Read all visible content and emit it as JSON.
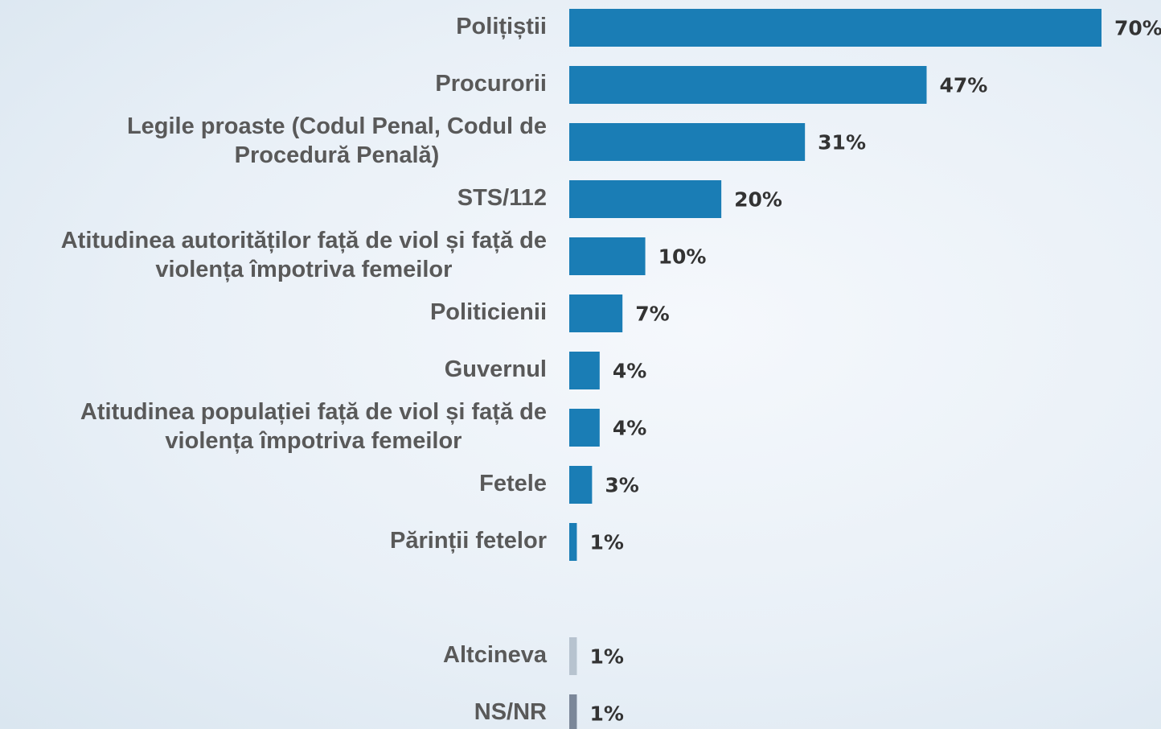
{
  "chart_data": {
    "type": "barh",
    "categories": [
      "Polițiștii",
      "Procurorii",
      [
        "Legile proaste (Codul Penal, Codul de",
        "Procedură Penală)"
      ],
      "STS/112",
      [
        "Atitudinea autorităților față de viol și față de",
        "violența împotriva femeilor"
      ],
      "Politicienii",
      "Guvernul",
      [
        "Atitudinea populației față de viol și față de",
        "violența împotriva femeilor"
      ],
      "Fetele",
      "Părinții fetelor",
      null,
      "Altcineva",
      "NS/NR"
    ],
    "values": [
      70,
      47,
      31,
      20,
      10,
      7,
      4,
      4,
      3,
      1,
      null,
      1,
      1
    ],
    "value_labels": [
      "70%",
      "47%",
      "31%",
      "20%",
      "10%",
      "7%",
      "4%",
      "4%",
      "3%",
      "1%",
      null,
      "1%",
      "1%"
    ],
    "colors": [
      "#1a7db5",
      "#1a7db5",
      "#1a7db5",
      "#1a7db5",
      "#1a7db5",
      "#1a7db5",
      "#1a7db5",
      "#1a7db5",
      "#1a7db5",
      "#1a7db5",
      null,
      "#b7c3cf",
      "#7b8799"
    ]
  }
}
